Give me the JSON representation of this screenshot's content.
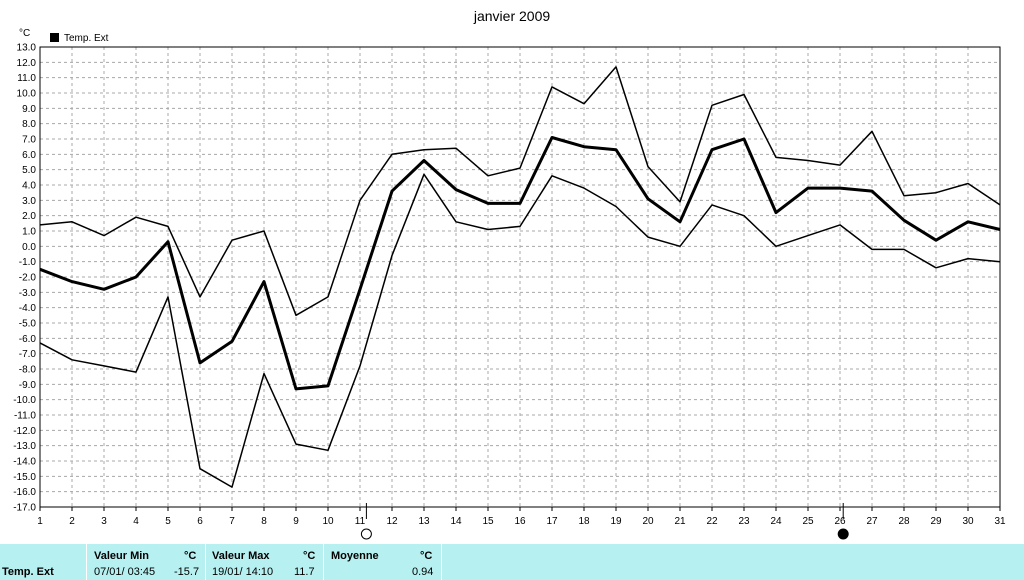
{
  "chart_data": {
    "type": "line",
    "title": "janvier 2009",
    "ylabel": "°C",
    "xlabel": "",
    "ylim": [
      -17,
      13
    ],
    "grid": true,
    "legend": [
      {
        "name": "Temp. Ext",
        "color": "#000000"
      }
    ],
    "x": [
      1,
      2,
      3,
      4,
      5,
      6,
      7,
      8,
      9,
      10,
      11,
      12,
      13,
      14,
      15,
      16,
      17,
      18,
      19,
      20,
      21,
      22,
      23,
      24,
      25,
      26,
      27,
      28,
      29,
      30,
      31
    ],
    "series": [
      {
        "name": "",
        "role": "max",
        "values": [
          1.4,
          1.6,
          0.7,
          1.9,
          1.3,
          -3.3,
          0.4,
          1.0,
          -4.5,
          -3.3,
          3.0,
          6.0,
          6.3,
          6.4,
          4.6,
          5.1,
          10.4,
          9.3,
          11.7,
          5.2,
          2.9,
          9.2,
          9.9,
          5.8,
          5.6,
          5.3,
          7.5,
          3.3,
          3.5,
          4.1,
          2.7
        ]
      },
      {
        "name": "Temp. Ext",
        "role": "mean",
        "values": [
          -1.5,
          -2.3,
          -2.8,
          -2.0,
          0.3,
          -7.6,
          -6.2,
          -2.3,
          -9.3,
          -9.1,
          -2.8,
          3.6,
          5.6,
          3.7,
          2.8,
          2.8,
          7.1,
          6.5,
          6.3,
          3.1,
          1.6,
          6.3,
          7.0,
          2.2,
          3.8,
          3.8,
          3.6,
          1.7,
          0.4,
          1.6,
          1.1
        ]
      },
      {
        "name": "",
        "role": "min",
        "values": [
          -6.3,
          -7.4,
          -7.8,
          -8.2,
          -3.3,
          -14.5,
          -15.7,
          -8.3,
          -12.9,
          -13.3,
          -7.8,
          -0.6,
          4.7,
          1.6,
          1.1,
          1.3,
          4.6,
          3.8,
          2.6,
          0.6,
          0.0,
          2.7,
          2.0,
          0.0,
          0.7,
          1.4,
          -0.2,
          -0.2,
          -1.4,
          -0.8,
          -1.0
        ]
      }
    ],
    "moon_markers": [
      {
        "day": 11.2,
        "phase": "full-moon-icon"
      },
      {
        "day": 26.1,
        "phase": "new-moon-icon"
      }
    ]
  },
  "footer": {
    "row_label": "Temp. Ext",
    "min": {
      "header": "Valeur Min",
      "unit": "°C",
      "date": "07/01/  03:45",
      "value": "-15.7"
    },
    "max": {
      "header": "Valeur Max",
      "unit": "°C",
      "date": "19/01/  14:10",
      "value": "11.7"
    },
    "avg": {
      "header": "Moyenne",
      "unit": "°C",
      "value": "0.94"
    }
  }
}
